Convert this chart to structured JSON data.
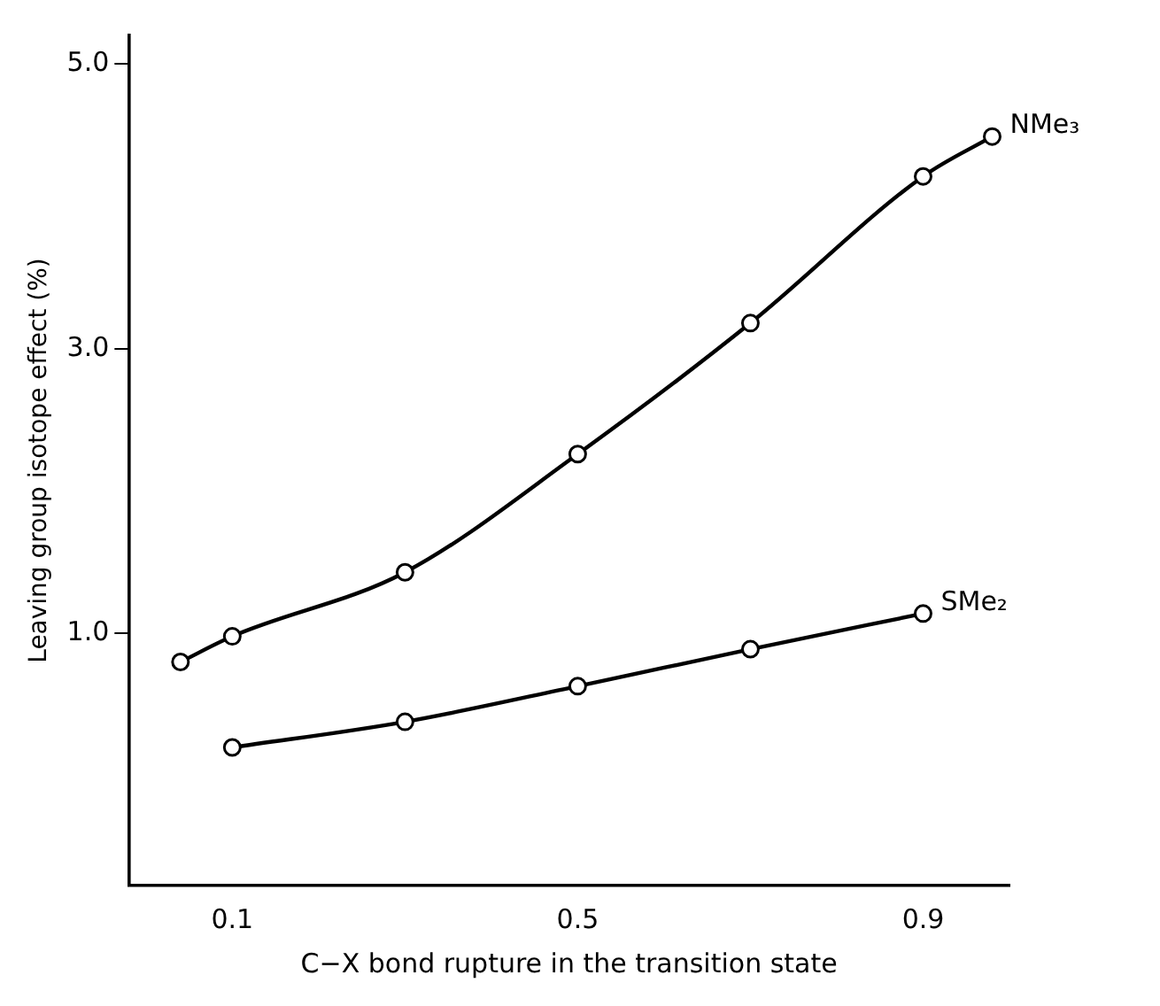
{
  "chart_data": {
    "type": "line",
    "xlabel": "C−X bond rupture in the transition state",
    "ylabel": "Leaving group isotope effect (%)",
    "xlim": [
      -0.02,
      1.0
    ],
    "xticks": [
      0.1,
      0.5,
      0.9
    ],
    "ylim": [
      -0.77,
      5.2
    ],
    "yticks": [
      {
        "value": 1,
        "label": "1.0"
      },
      {
        "value": 3,
        "label": "3.0"
      },
      {
        "value": 5,
        "label": "5.0"
      }
    ],
    "grid": false,
    "legend": false,
    "marker": "circle",
    "line_style": "solid",
    "series": [
      {
        "name": "NMe₃",
        "color": "#000000",
        "x": [
          0.04,
          0.1,
          0.3,
          0.5,
          0.7,
          0.9,
          0.98
        ],
        "values": [
          0.8,
          0.98,
          1.43,
          2.26,
          3.18,
          4.21,
          4.49
        ]
      },
      {
        "name": "SMe₂",
        "color": "#000000",
        "x": [
          0.1,
          0.3,
          0.5,
          0.7,
          0.9
        ],
        "values": [
          0.2,
          0.38,
          0.63,
          0.89,
          1.14
        ]
      }
    ]
  }
}
